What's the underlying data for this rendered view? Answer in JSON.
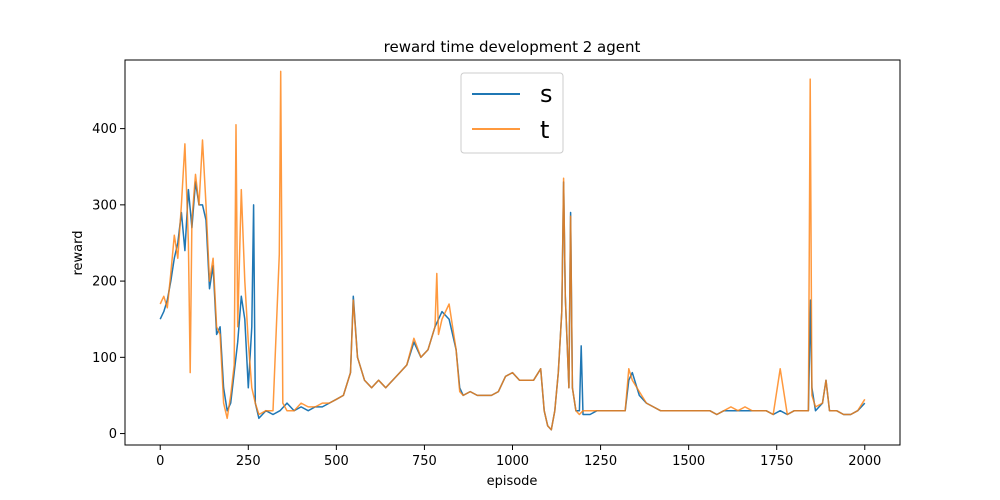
{
  "chart_data": {
    "type": "line",
    "title": "reward time development 2 agent",
    "xlabel": "episode",
    "ylabel": "reward",
    "xlim": [
      -100,
      2100
    ],
    "ylim": [
      -15,
      490
    ],
    "xticks": [
      0,
      250,
      500,
      750,
      1000,
      1250,
      1500,
      1750,
      2000
    ],
    "yticks": [
      0,
      100,
      200,
      300,
      400
    ],
    "grid": false,
    "legend_position": "top-center",
    "series": [
      {
        "name": "s",
        "color": "#1f77b4",
        "points": [
          [
            0,
            150
          ],
          [
            10,
            160
          ],
          [
            20,
            175
          ],
          [
            30,
            200
          ],
          [
            40,
            230
          ],
          [
            50,
            250
          ],
          [
            60,
            290
          ],
          [
            70,
            240
          ],
          [
            80,
            320
          ],
          [
            90,
            270
          ],
          [
            100,
            330
          ],
          [
            110,
            300
          ],
          [
            120,
            300
          ],
          [
            130,
            280
          ],
          [
            140,
            190
          ],
          [
            150,
            220
          ],
          [
            160,
            130
          ],
          [
            170,
            140
          ],
          [
            180,
            60
          ],
          [
            190,
            30
          ],
          [
            200,
            40
          ],
          [
            210,
            80
          ],
          [
            220,
            120
          ],
          [
            230,
            180
          ],
          [
            240,
            150
          ],
          [
            250,
            60
          ],
          [
            260,
            140
          ],
          [
            265,
            300
          ],
          [
            270,
            40
          ],
          [
            280,
            20
          ],
          [
            300,
            30
          ],
          [
            320,
            25
          ],
          [
            340,
            30
          ],
          [
            360,
            40
          ],
          [
            380,
            30
          ],
          [
            400,
            35
          ],
          [
            420,
            30
          ],
          [
            440,
            35
          ],
          [
            460,
            35
          ],
          [
            480,
            40
          ],
          [
            500,
            45
          ],
          [
            520,
            50
          ],
          [
            540,
            80
          ],
          [
            548,
            180
          ],
          [
            560,
            100
          ],
          [
            580,
            70
          ],
          [
            600,
            60
          ],
          [
            620,
            70
          ],
          [
            640,
            60
          ],
          [
            660,
            70
          ],
          [
            680,
            80
          ],
          [
            700,
            90
          ],
          [
            720,
            120
          ],
          [
            740,
            100
          ],
          [
            760,
            110
          ],
          [
            780,
            140
          ],
          [
            800,
            160
          ],
          [
            820,
            150
          ],
          [
            840,
            110
          ],
          [
            850,
            60
          ],
          [
            860,
            50
          ],
          [
            880,
            55
          ],
          [
            900,
            50
          ],
          [
            920,
            50
          ],
          [
            940,
            50
          ],
          [
            960,
            55
          ],
          [
            980,
            75
          ],
          [
            1000,
            80
          ],
          [
            1020,
            70
          ],
          [
            1040,
            70
          ],
          [
            1060,
            70
          ],
          [
            1080,
            85
          ],
          [
            1090,
            30
          ],
          [
            1100,
            10
          ],
          [
            1110,
            5
          ],
          [
            1120,
            30
          ],
          [
            1130,
            80
          ],
          [
            1140,
            160
          ],
          [
            1145,
            330
          ],
          [
            1150,
            180
          ],
          [
            1160,
            60
          ],
          [
            1165,
            290
          ],
          [
            1170,
            60
          ],
          [
            1180,
            30
          ],
          [
            1190,
            30
          ],
          [
            1195,
            115
          ],
          [
            1200,
            25
          ],
          [
            1220,
            25
          ],
          [
            1240,
            30
          ],
          [
            1260,
            30
          ],
          [
            1280,
            30
          ],
          [
            1300,
            30
          ],
          [
            1320,
            30
          ],
          [
            1330,
            70
          ],
          [
            1340,
            80
          ],
          [
            1360,
            50
          ],
          [
            1380,
            40
          ],
          [
            1400,
            35
          ],
          [
            1420,
            30
          ],
          [
            1440,
            30
          ],
          [
            1460,
            30
          ],
          [
            1480,
            30
          ],
          [
            1500,
            30
          ],
          [
            1520,
            30
          ],
          [
            1540,
            30
          ],
          [
            1560,
            30
          ],
          [
            1580,
            25
          ],
          [
            1600,
            30
          ],
          [
            1620,
            30
          ],
          [
            1640,
            30
          ],
          [
            1660,
            30
          ],
          [
            1680,
            30
          ],
          [
            1700,
            30
          ],
          [
            1720,
            30
          ],
          [
            1740,
            25
          ],
          [
            1760,
            30
          ],
          [
            1780,
            25
          ],
          [
            1800,
            30
          ],
          [
            1820,
            30
          ],
          [
            1840,
            30
          ],
          [
            1846,
            175
          ],
          [
            1850,
            60
          ],
          [
            1860,
            30
          ],
          [
            1880,
            40
          ],
          [
            1890,
            70
          ],
          [
            1900,
            30
          ],
          [
            1920,
            30
          ],
          [
            1940,
            25
          ],
          [
            1960,
            25
          ],
          [
            1980,
            30
          ],
          [
            2000,
            40
          ]
        ]
      },
      {
        "name": "t",
        "color": "#ff7f0e",
        "points": [
          [
            0,
            170
          ],
          [
            10,
            180
          ],
          [
            20,
            165
          ],
          [
            30,
            210
          ],
          [
            40,
            260
          ],
          [
            50,
            230
          ],
          [
            60,
            300
          ],
          [
            70,
            380
          ],
          [
            80,
            250
          ],
          [
            85,
            80
          ],
          [
            90,
            280
          ],
          [
            100,
            340
          ],
          [
            110,
            300
          ],
          [
            120,
            385
          ],
          [
            130,
            300
          ],
          [
            140,
            200
          ],
          [
            150,
            230
          ],
          [
            160,
            140
          ],
          [
            170,
            130
          ],
          [
            180,
            40
          ],
          [
            190,
            20
          ],
          [
            200,
            50
          ],
          [
            210,
            90
          ],
          [
            215,
            405
          ],
          [
            220,
            140
          ],
          [
            230,
            320
          ],
          [
            240,
            200
          ],
          [
            250,
            120
          ],
          [
            260,
            60
          ],
          [
            270,
            40
          ],
          [
            280,
            25
          ],
          [
            300,
            30
          ],
          [
            320,
            30
          ],
          [
            338,
            235
          ],
          [
            342,
            475
          ],
          [
            348,
            40
          ],
          [
            360,
            30
          ],
          [
            380,
            30
          ],
          [
            400,
            40
          ],
          [
            420,
            35
          ],
          [
            440,
            35
          ],
          [
            460,
            40
          ],
          [
            480,
            40
          ],
          [
            500,
            45
          ],
          [
            520,
            50
          ],
          [
            540,
            80
          ],
          [
            548,
            175
          ],
          [
            560,
            100
          ],
          [
            580,
            70
          ],
          [
            600,
            60
          ],
          [
            620,
            70
          ],
          [
            640,
            60
          ],
          [
            660,
            70
          ],
          [
            680,
            80
          ],
          [
            700,
            90
          ],
          [
            720,
            125
          ],
          [
            740,
            100
          ],
          [
            760,
            110
          ],
          [
            780,
            140
          ],
          [
            785,
            210
          ],
          [
            790,
            130
          ],
          [
            800,
            150
          ],
          [
            820,
            170
          ],
          [
            840,
            110
          ],
          [
            850,
            55
          ],
          [
            860,
            50
          ],
          [
            880,
            55
          ],
          [
            900,
            50
          ],
          [
            920,
            50
          ],
          [
            940,
            50
          ],
          [
            960,
            55
          ],
          [
            980,
            75
          ],
          [
            1000,
            80
          ],
          [
            1020,
            70
          ],
          [
            1040,
            70
          ],
          [
            1060,
            70
          ],
          [
            1080,
            85
          ],
          [
            1090,
            30
          ],
          [
            1100,
            10
          ],
          [
            1110,
            5
          ],
          [
            1120,
            30
          ],
          [
            1130,
            80
          ],
          [
            1140,
            160
          ],
          [
            1145,
            335
          ],
          [
            1150,
            180
          ],
          [
            1160,
            60
          ],
          [
            1165,
            285
          ],
          [
            1170,
            60
          ],
          [
            1180,
            30
          ],
          [
            1190,
            25
          ],
          [
            1200,
            30
          ],
          [
            1220,
            30
          ],
          [
            1240,
            30
          ],
          [
            1260,
            30
          ],
          [
            1280,
            30
          ],
          [
            1300,
            30
          ],
          [
            1320,
            30
          ],
          [
            1330,
            85
          ],
          [
            1340,
            70
          ],
          [
            1360,
            55
          ],
          [
            1380,
            40
          ],
          [
            1400,
            35
          ],
          [
            1420,
            30
          ],
          [
            1440,
            30
          ],
          [
            1460,
            30
          ],
          [
            1480,
            30
          ],
          [
            1500,
            30
          ],
          [
            1520,
            30
          ],
          [
            1540,
            30
          ],
          [
            1560,
            30
          ],
          [
            1580,
            25
          ],
          [
            1600,
            30
          ],
          [
            1620,
            35
          ],
          [
            1640,
            30
          ],
          [
            1660,
            35
          ],
          [
            1680,
            30
          ],
          [
            1700,
            30
          ],
          [
            1720,
            30
          ],
          [
            1740,
            25
          ],
          [
            1760,
            85
          ],
          [
            1780,
            25
          ],
          [
            1800,
            30
          ],
          [
            1820,
            30
          ],
          [
            1840,
            30
          ],
          [
            1845,
            465
          ],
          [
            1850,
            50
          ],
          [
            1860,
            35
          ],
          [
            1880,
            40
          ],
          [
            1890,
            70
          ],
          [
            1900,
            30
          ],
          [
            1920,
            30
          ],
          [
            1940,
            25
          ],
          [
            1960,
            25
          ],
          [
            1980,
            30
          ],
          [
            2000,
            45
          ]
        ]
      }
    ]
  }
}
